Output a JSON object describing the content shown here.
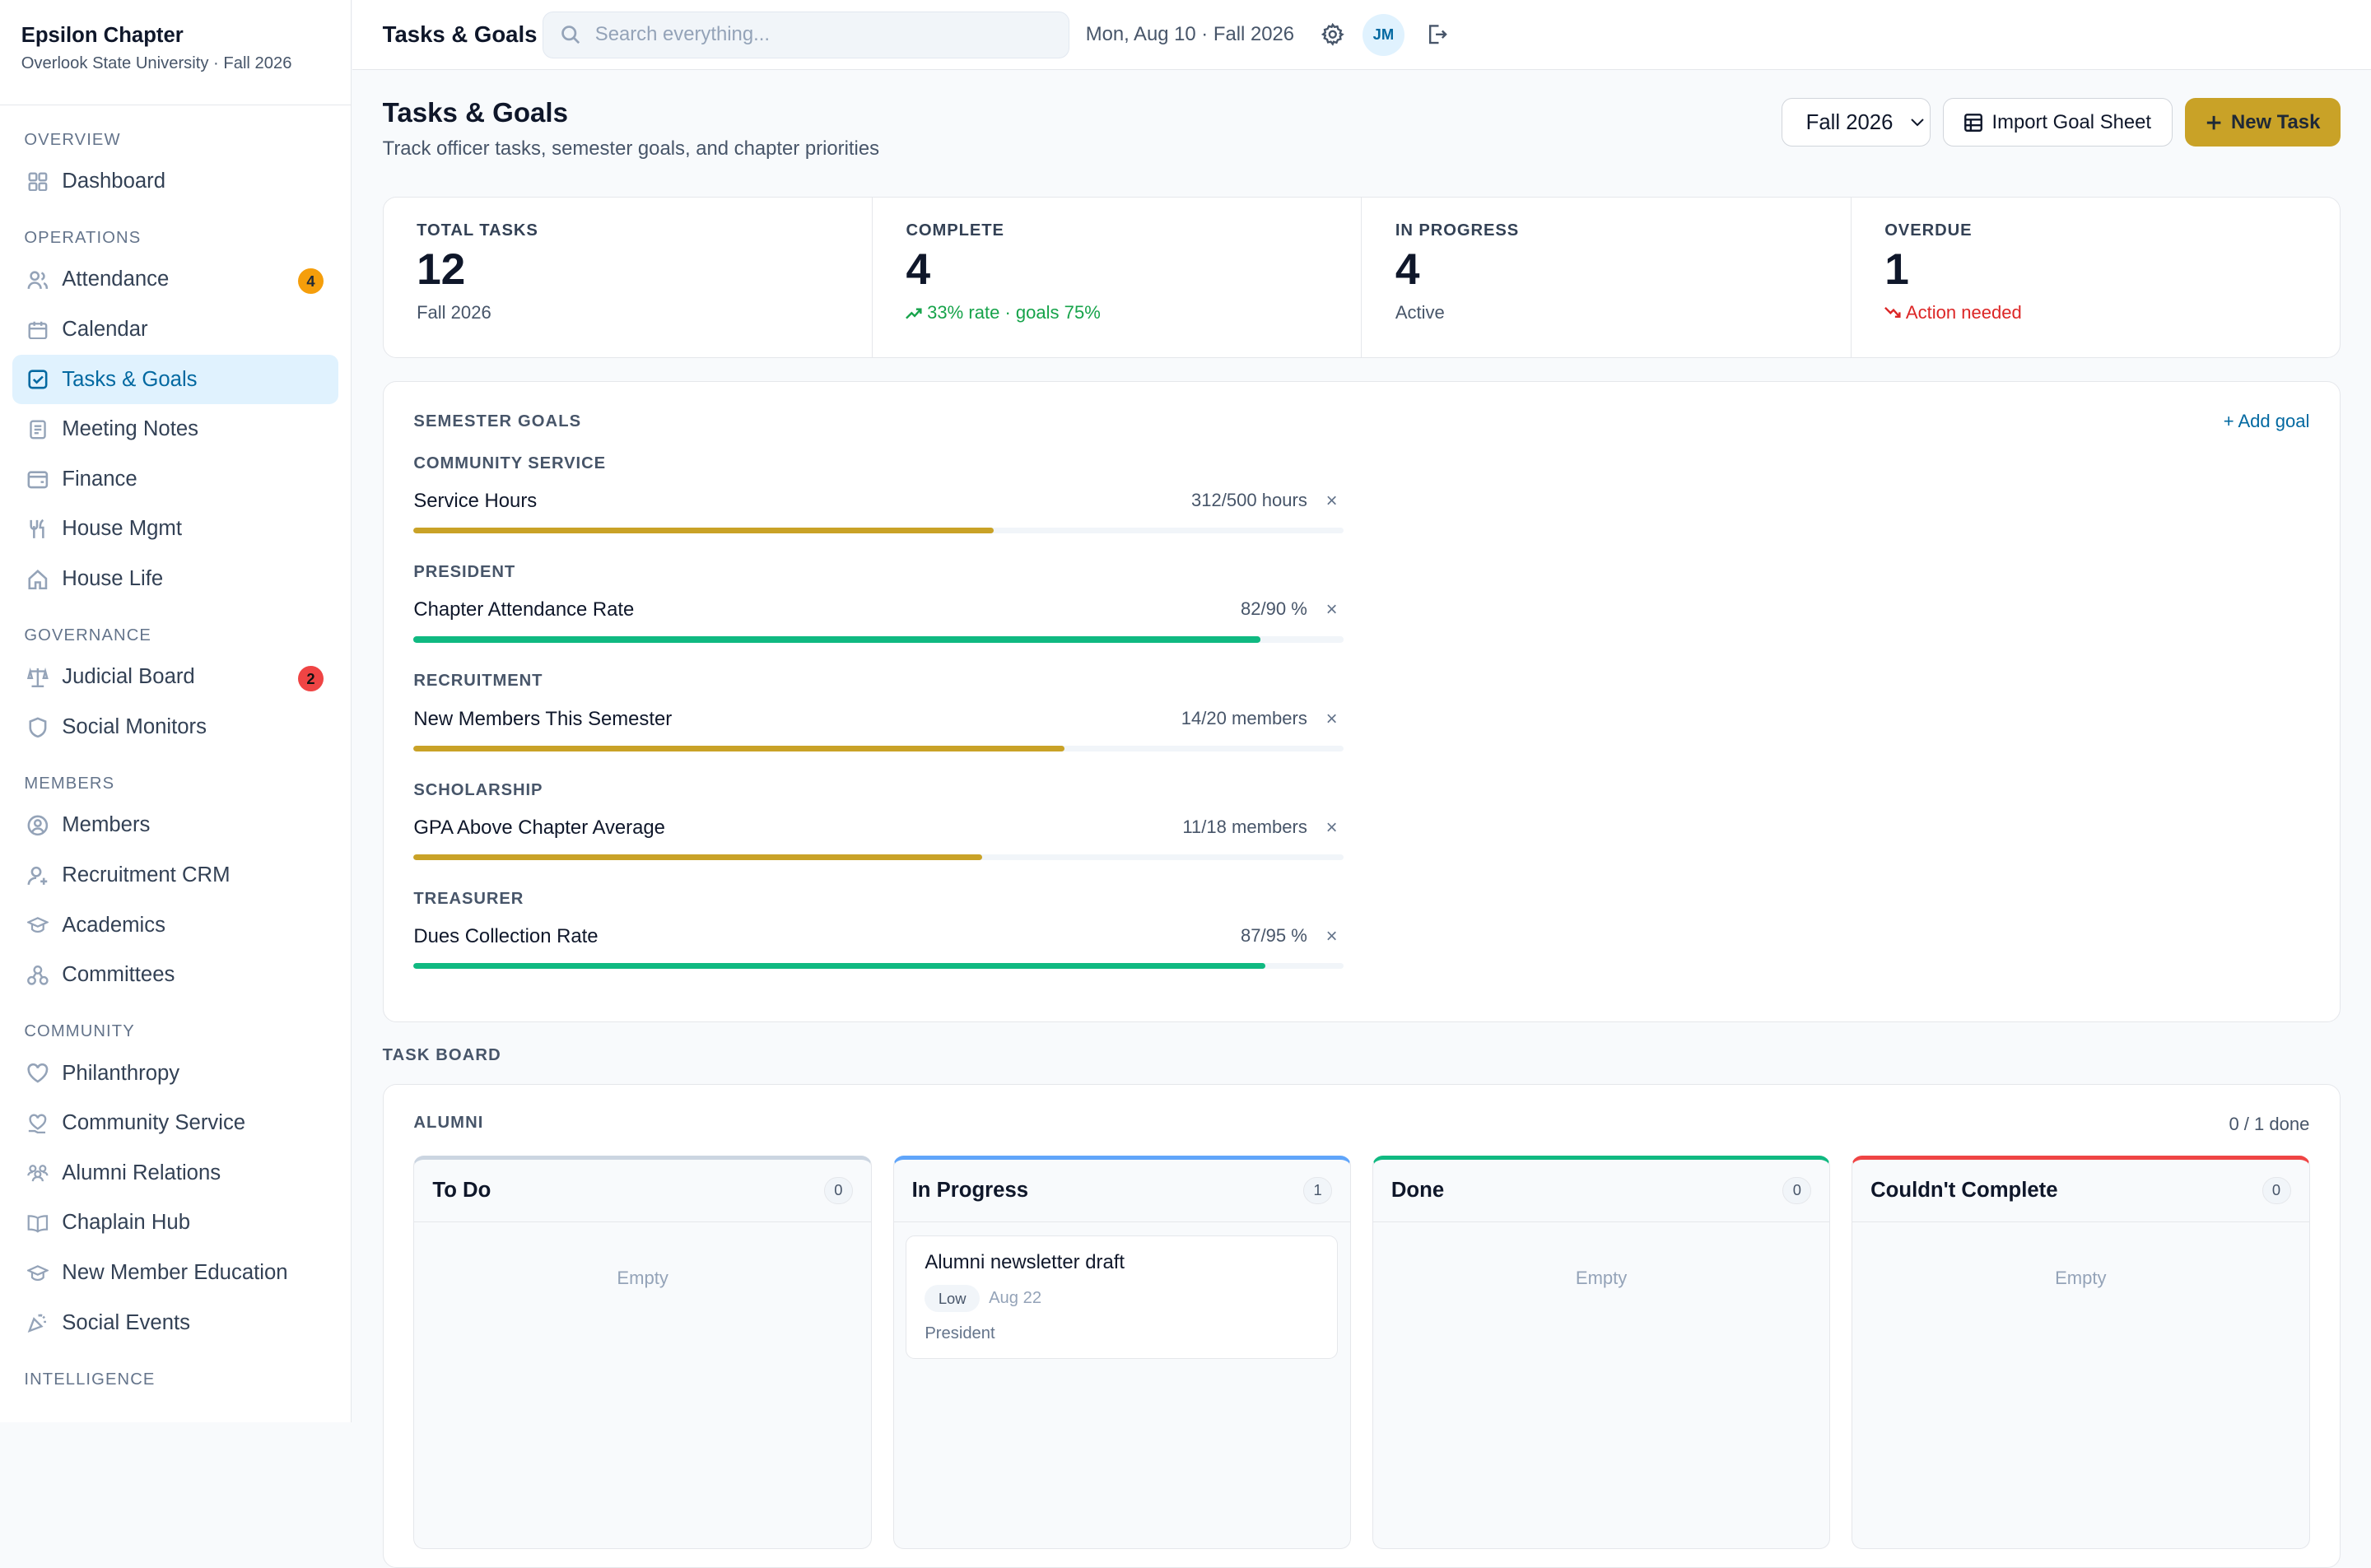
{
  "sidebar": {
    "chapter_name": "Epsilon Chapter",
    "chapter_sub": "Overlook State University · Fall 2026",
    "sections": {
      "overview": "OVERVIEW",
      "operations": "OPERATIONS",
      "governance": "GOVERNANCE",
      "members": "MEMBERS",
      "community": "COMMUNITY",
      "intelligence": "INTELLIGENCE"
    },
    "items": {
      "dashboard": "Dashboard",
      "attendance": "Attendance",
      "attendance_badge": "4",
      "calendar": "Calendar",
      "tasks_goals": "Tasks & Goals",
      "meeting_notes": "Meeting Notes",
      "finance": "Finance",
      "house_mgmt": "House Mgmt",
      "house_life": "House Life",
      "judicial_board": "Judicial Board",
      "judicial_badge": "2",
      "social_monitors": "Social Monitors",
      "members": "Members",
      "recruitment_crm": "Recruitment CRM",
      "academics": "Academics",
      "committees": "Committees",
      "philanthropy": "Philanthropy",
      "community_service": "Community Service",
      "alumni_relations": "Alumni Relations",
      "chaplain_hub": "Chaplain Hub",
      "new_member_education": "New Member Education",
      "social_events": "Social Events"
    }
  },
  "topbar": {
    "title": "Tasks & Goals",
    "search_placeholder": "Search everything...",
    "date": "Mon, Aug 10 · Fall 2026",
    "avatar": "JM"
  },
  "header": {
    "title": "Tasks & Goals",
    "subtitle": "Track officer tasks, semester goals, and chapter priorities",
    "term_selected": "Fall 2026",
    "import_label": "Import Goal Sheet",
    "new_task_label": "New Task"
  },
  "stats": [
    {
      "label": "TOTAL TASKS",
      "value": "12",
      "note": "Fall 2026"
    },
    {
      "label": "COMPLETE",
      "value": "4",
      "note": "33% rate · goals 75%"
    },
    {
      "label": "IN PROGRESS",
      "value": "4",
      "note": "Active"
    },
    {
      "label": "OVERDUE",
      "value": "1",
      "note": "Action needed"
    }
  ],
  "goals": {
    "section_label": "SEMESTER GOALS",
    "add_label": "+ Add goal",
    "items": [
      {
        "category": "COMMUNITY SERVICE",
        "name": "Service Hours",
        "value": "312/500 hours",
        "progress": 0.624,
        "color": "#c9a227"
      },
      {
        "category": "PRESIDENT",
        "name": "Chapter Attendance Rate",
        "value": "82/90 %",
        "progress": 0.911,
        "color": "#10b981"
      },
      {
        "category": "RECRUITMENT",
        "name": "New Members This Semester",
        "value": "14/20 members",
        "progress": 0.7,
        "color": "#c9a227"
      },
      {
        "category": "SCHOLARSHIP",
        "name": "GPA Above Chapter Average",
        "value": "11/18 members",
        "progress": 0.611,
        "color": "#c9a227"
      },
      {
        "category": "TREASURER",
        "name": "Dues Collection Rate",
        "value": "87/95 %",
        "progress": 0.916,
        "color": "#10b981"
      }
    ],
    "remove_glyph": "×"
  },
  "board": {
    "section_label": "TASK BOARD",
    "group": "ALUMNI",
    "done_count": "0 / 1 done",
    "empty_label": "Empty",
    "columns": [
      {
        "title": "To Do",
        "count": "0",
        "accent": "#cbd5e1"
      },
      {
        "title": "In Progress",
        "count": "1",
        "accent": "#60a5fa"
      },
      {
        "title": "Done",
        "count": "0",
        "accent": "#10b981"
      },
      {
        "title": "Couldn't Complete",
        "count": "0",
        "accent": "#ef4444"
      }
    ],
    "card": {
      "title": "Alumni newsletter draft",
      "priority": "Low",
      "due": "Aug 22",
      "owner": "President"
    }
  },
  "colors": {
    "brand_gold": "#c9a227",
    "accent_blue": "#0369a1",
    "success": "#16a34a",
    "danger": "#dc2626"
  }
}
